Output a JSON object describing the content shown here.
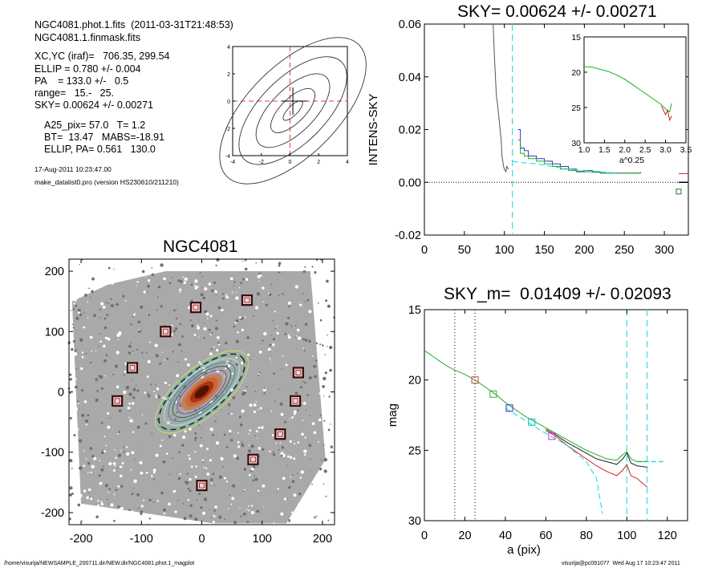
{
  "header": {
    "lines": [
      "NGC4081.phot.1.fits  (2011-03-31T21:48:53)",
      "NGC4081.1.finmask.fits",
      "XC,YC (iraf)=   706.35, 299.54",
      "ELLIP = 0.780 +/- 0.004",
      "PA    = 133.0 +/-   0.5",
      "range=   15.-   25.",
      "SKY= 0.00624 +/- 0.00271",
      "A25_pix= 57.0   T= 1.2",
      "BT=  13.47   MABS=-18.91",
      "ELLIP, PA= 0.561   130.0",
      "17-Aug-2011 10:23:47.00",
      "make_datalist0.pro (version HS230610/211210)"
    ]
  },
  "footer": {
    "left": "/home/visurija/NEWSAMPLE_200711.dir/NEW.dir/NGC4081.phot.1_magplot",
    "right": "visurija@pc091077  Wed Aug 17 10:23:47 2011"
  },
  "chart_data": [
    {
      "id": "contour",
      "type": "contour",
      "xlim": [
        -4,
        4
      ],
      "ylim": [
        -4,
        4
      ],
      "xticks": [
        "-4",
        "-2",
        "0",
        "2",
        "4"
      ],
      "yticks": [
        "-4",
        "-2",
        "0",
        "2",
        "4"
      ]
    },
    {
      "id": "sky",
      "type": "line",
      "title": "SKY= 0.00624 +/- 0.00271",
      "ylabel": "INTENS-SKY",
      "xlim": [
        0,
        330
      ],
      "ylim": [
        -0.02,
        0.06
      ],
      "xticks": [
        "0",
        "50",
        "100",
        "150",
        "200",
        "250",
        "300"
      ],
      "yticks": [
        "-0.02",
        "0.00",
        "0.02",
        "0.04",
        "0.06"
      ],
      "series": [
        {
          "color": "#555555",
          "x": [
            86,
            88,
            90,
            92,
            94,
            96,
            97,
            99,
            100,
            102,
            103,
            105
          ],
          "y": [
            0.062,
            0.045,
            0.033,
            0.028,
            0.022,
            0.016,
            0.01,
            0.006,
            0.005,
            0.004,
            0.006,
            0.005
          ]
        },
        {
          "color": "#3333cc",
          "x": [
            117,
            120,
            125,
            130,
            140,
            150,
            160,
            170,
            180,
            190,
            200,
            210,
            220,
            240,
            260,
            270
          ],
          "y": [
            0.02,
            0.013,
            0.012,
            0.01,
            0.009,
            0.008,
            0.007,
            0.006,
            0.005,
            0.004,
            0.0045,
            0.004,
            0.0035,
            0.0035,
            0.0035,
            0.004
          ]
        },
        {
          "color": "#22aa22",
          "x": [
            117,
            120,
            125,
            130,
            140,
            150,
            160,
            170,
            180,
            190,
            200,
            210,
            220,
            240,
            260,
            270
          ],
          "y": [
            0.016,
            0.011,
            0.01,
            0.009,
            0.008,
            0.007,
            0.006,
            0.005,
            0.0045,
            0.0042,
            0.004,
            0.0038,
            0.0035,
            0.0035,
            0.0035,
            0.0038
          ]
        },
        {
          "color": "#00dddd",
          "x": [
            110,
            120,
            140,
            160,
            180,
            200,
            220,
            240
          ],
          "y": [
            0.008,
            0.0075,
            0.007,
            0.006,
            0.005,
            0.0045,
            0.004,
            0.0035
          ]
        }
      ],
      "sky_levels": [
        0.0,
        0.0033,
        -0.0035
      ],
      "inset": {
        "xlabel": "a^0.25",
        "xlim": [
          1.0,
          3.5
        ],
        "ylim": [
          30,
          15
        ],
        "xticks": [
          "1.0",
          "1.5",
          "2.0",
          "2.5",
          "3.0",
          "3.5"
        ],
        "yticks": [
          "15",
          "20",
          "25",
          "30"
        ],
        "series": [
          {
            "color": "#22aa22",
            "x": [
              1.0,
              1.2,
              1.4,
              1.6,
              1.8,
              2.0,
              2.2,
              2.4,
              2.6,
              2.8,
              2.9,
              3.0,
              3.1,
              3.15
            ],
            "y": [
              19.2,
              19.3,
              19.6,
              19.9,
              20.4,
              21.0,
              21.8,
              22.6,
              23.4,
              24.2,
              24.6,
              25.2,
              25.6,
              24.4
            ]
          },
          {
            "color": "#cc2222",
            "x": [
              2.9,
              3.0,
              3.05,
              3.1,
              3.15
            ],
            "y": [
              24.8,
              26.0,
              25.4,
              26.8,
              26.2
            ]
          }
        ]
      }
    },
    {
      "id": "image",
      "type": "scatter",
      "title": "NGC4081",
      "xlim": [
        -220,
        220
      ],
      "ylim": [
        -220,
        220
      ],
      "xticks": [
        "-200",
        "-100",
        "0",
        "100",
        "200"
      ],
      "yticks": [
        "-200",
        "-100",
        "0",
        "100",
        "200"
      ],
      "stars": [
        [
          -140,
          -15
        ],
        [
          -115,
          40
        ],
        [
          -60,
          100
        ],
        [
          -10,
          140
        ],
        [
          75,
          152
        ],
        [
          160,
          32
        ],
        [
          155,
          -15
        ],
        [
          130,
          -70
        ],
        [
          85,
          -112
        ],
        [
          0,
          -155
        ]
      ],
      "ellipse": {
        "a": 90,
        "e": 0.78,
        "pa": 133
      }
    },
    {
      "id": "mag",
      "type": "line",
      "title": "SKY_m=  0.01409 +/- 0.02093",
      "xlabel": "a (pix)",
      "ylabel": "mag",
      "xlim": [
        0,
        130
      ],
      "ylim": [
        30,
        15
      ],
      "xticks": [
        "0",
        "20",
        "40",
        "60",
        "80",
        "100",
        "120"
      ],
      "yticks": [
        "15",
        "20",
        "25",
        "30"
      ],
      "series": [
        {
          "color": "#22aa22",
          "x": [
            0,
            5,
            10,
            15,
            20,
            25,
            30,
            35,
            40,
            45,
            50,
            55,
            60,
            65,
            70,
            75,
            80,
            85,
            90,
            95,
            98,
            100,
            102,
            105,
            110
          ],
          "y": [
            17.9,
            18.4,
            18.9,
            19.3,
            19.6,
            20.0,
            20.5,
            21.0,
            21.6,
            22.1,
            22.6,
            23.0,
            23.4,
            23.8,
            24.2,
            24.6,
            25.0,
            25.3,
            25.6,
            25.7,
            25.3,
            25.1,
            25.6,
            25.8,
            25.8
          ]
        },
        {
          "color": "#222222",
          "x": [
            60,
            65,
            70,
            75,
            80,
            85,
            90,
            95,
            98,
            100,
            102,
            105,
            110
          ],
          "y": [
            23.5,
            23.9,
            24.4,
            24.8,
            25.2,
            25.6,
            25.8,
            26.0,
            25.6,
            25.2,
            25.9,
            26.1,
            26.2
          ]
        },
        {
          "color": "#cc2222",
          "x": [
            60,
            65,
            70,
            75,
            80,
            85,
            90,
            95,
            98,
            100,
            102,
            105,
            110
          ],
          "y": [
            23.6,
            24.0,
            24.6,
            25.1,
            25.6,
            26.1,
            26.5,
            26.8,
            26.4,
            26.0,
            26.8,
            27.0,
            27.6
          ]
        },
        {
          "color": "#00dddd",
          "x": [
            40,
            50,
            60,
            70,
            80,
            85,
            88
          ],
          "y": [
            22.0,
            22.9,
            23.8,
            24.6,
            25.8,
            27.0,
            29.5
          ]
        }
      ],
      "boxes": [
        [
          25,
          20.0,
          "#cc4444"
        ],
        [
          34,
          21.0,
          "#33aa33"
        ],
        [
          42,
          22.0,
          "#3333cc"
        ],
        [
          53,
          23.0,
          "#00bbbb"
        ],
        [
          63,
          24.0,
          "#cc33cc"
        ]
      ],
      "vlines_dotted": [
        15,
        25
      ],
      "vlines_dashed": [
        100,
        110
      ],
      "sky_hline": [
        105,
        118,
        25.8
      ]
    }
  ]
}
